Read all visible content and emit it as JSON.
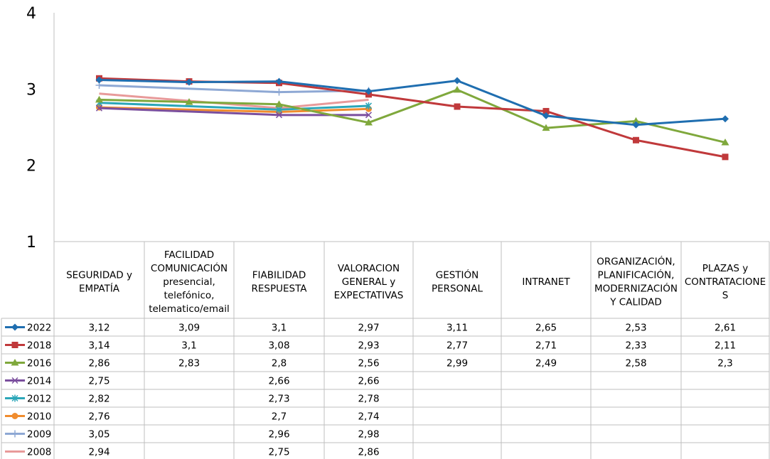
{
  "chart_data": {
    "type": "line",
    "title": "",
    "xlabel": "",
    "ylabel": "",
    "ylim": [
      1,
      4
    ],
    "yticks": [
      "1",
      "2",
      "3",
      "4"
    ],
    "grid": false,
    "legend": "table-left",
    "categories": [
      [
        "SEGURIDAD y",
        "EMPATÍA"
      ],
      [
        "FACILIDAD",
        "COMUNICACIÓN",
        "presencial,",
        "telefónico,",
        "telematico/email"
      ],
      [
        "FIABILIDAD",
        "RESPUESTA"
      ],
      [
        "VALORACION",
        "GENERAL y",
        "EXPECTATIVAS"
      ],
      [
        "GESTIÓN",
        "PERSONAL"
      ],
      [
        "INTRANET"
      ],
      [
        "ORGANIZACIÓN,",
        "PLANIFICACIÓN,",
        "MODERNIZACIÓN",
        "Y CALIDAD"
      ],
      [
        "PLAZAS y",
        "CONTRATACIONE",
        "S"
      ]
    ],
    "series": [
      {
        "name": "2022",
        "color": "#1f6eb0",
        "marker": "diamond",
        "values": [
          3.12,
          3.09,
          3.1,
          2.97,
          3.11,
          2.65,
          2.53,
          2.61
        ],
        "labels": [
          "3,12",
          "3,09",
          "3,1",
          "2,97",
          "3,11",
          "2,65",
          "2,53",
          "2,61"
        ]
      },
      {
        "name": "2018",
        "color": "#c0393b",
        "marker": "square",
        "values": [
          3.14,
          3.1,
          3.08,
          2.93,
          2.77,
          2.71,
          2.33,
          2.11
        ],
        "labels": [
          "3,14",
          "3,1",
          "3,08",
          "2,93",
          "2,77",
          "2,71",
          "2,33",
          "2,11"
        ]
      },
      {
        "name": "2016",
        "color": "#7fa83c",
        "marker": "triangle",
        "values": [
          2.86,
          2.83,
          2.8,
          2.56,
          2.99,
          2.49,
          2.58,
          2.3
        ],
        "labels": [
          "2,86",
          "2,83",
          "2,8",
          "2,56",
          "2,99",
          "2,49",
          "2,58",
          "2,3"
        ]
      },
      {
        "name": "2014",
        "color": "#7b4f9e",
        "marker": "x",
        "values": [
          2.75,
          null,
          2.66,
          2.66,
          null,
          null,
          null,
          null
        ],
        "labels": [
          "2,75",
          "",
          "2,66",
          "2,66",
          "",
          "",
          "",
          ""
        ]
      },
      {
        "name": "2012",
        "color": "#2ba6b8",
        "marker": "star",
        "values": [
          2.82,
          null,
          2.73,
          2.78,
          null,
          null,
          null,
          null
        ],
        "labels": [
          "2,82",
          "",
          "2,73",
          "2,78",
          "",
          "",
          "",
          ""
        ]
      },
      {
        "name": "2010",
        "color": "#f08c2e",
        "marker": "circle",
        "values": [
          2.76,
          null,
          2.7,
          2.74,
          null,
          null,
          null,
          null
        ],
        "labels": [
          "2,76",
          "",
          "2,7",
          "2,74",
          "",
          "",
          "",
          ""
        ]
      },
      {
        "name": "2009",
        "color": "#8ea8d4",
        "marker": "plus",
        "values": [
          3.05,
          null,
          2.96,
          2.98,
          null,
          null,
          null,
          null
        ],
        "labels": [
          "3,05",
          "",
          "2,96",
          "2,98",
          "",
          "",
          "",
          ""
        ]
      },
      {
        "name": "2008",
        "color": "#e89a9a",
        "marker": "none",
        "values": [
          2.94,
          null,
          2.75,
          2.86,
          null,
          null,
          null,
          null
        ],
        "labels": [
          "2,94",
          "",
          "2,75",
          "2,86",
          "",
          "",
          "",
          ""
        ]
      }
    ]
  }
}
